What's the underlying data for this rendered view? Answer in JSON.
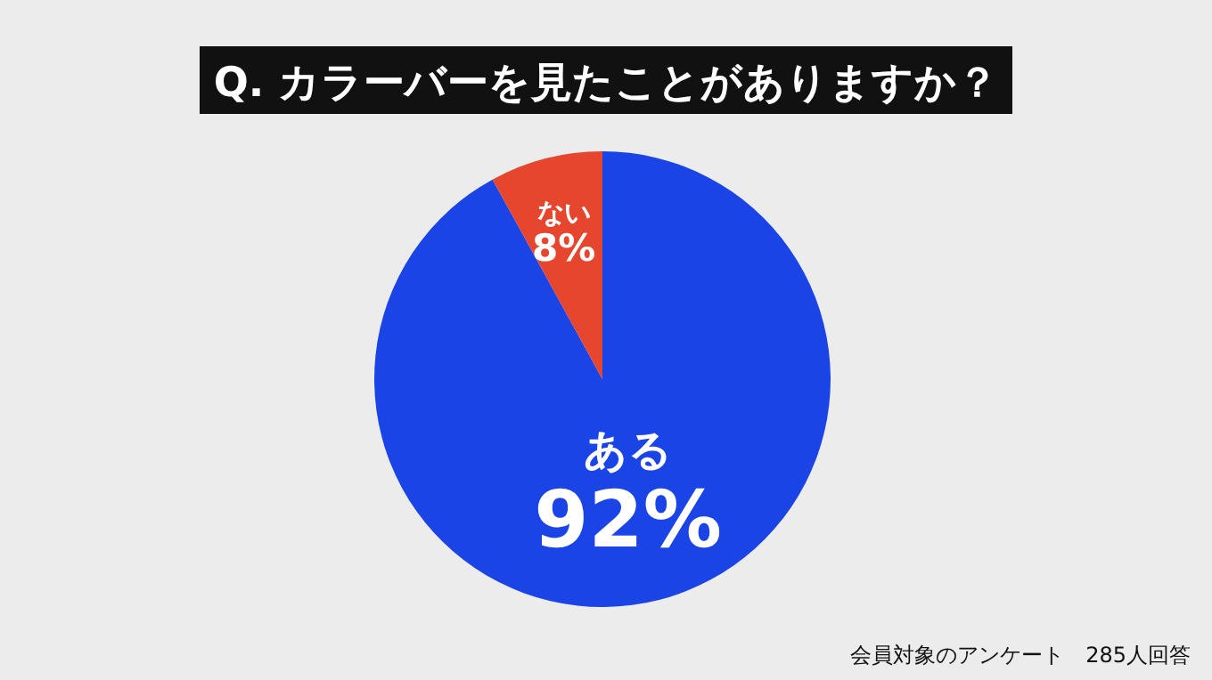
{
  "chart_data": {
    "type": "pie",
    "title": "Q. カラーバーを見たことがありますか？",
    "categories": [
      "ある",
      "ない"
    ],
    "values": [
      92,
      8
    ],
    "colors": [
      "#1a44e6",
      "#e6452e"
    ],
    "value_labels": [
      "92%",
      "8%"
    ],
    "annotations": [
      "会員対象のアンケート　285人回答"
    ]
  }
}
